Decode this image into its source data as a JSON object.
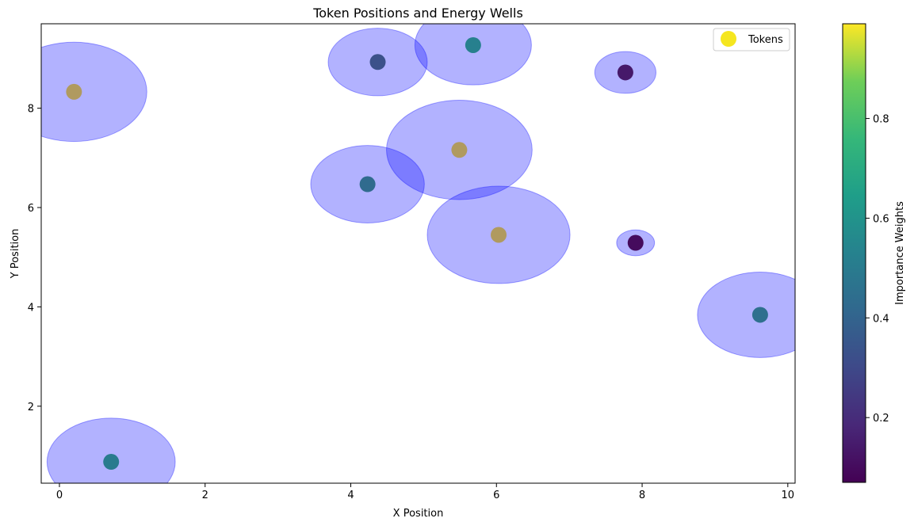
{
  "chart_data": {
    "type": "scatter",
    "title": "Token Positions and Energy Wells",
    "xlabel": "X Position",
    "ylabel": "Y Position",
    "xlim": [
      -0.25,
      10.1
    ],
    "ylim": [
      0.45,
      9.7
    ],
    "xticks": [
      0,
      2,
      4,
      6,
      8,
      10
    ],
    "yticks": [
      2,
      4,
      6,
      8
    ],
    "grid": false,
    "legend": {
      "position": "upper-right",
      "entries": [
        "Tokens"
      ]
    },
    "colorbar": {
      "label": "Importance Weights",
      "colormap": "viridis",
      "range": [
        0.07,
        0.99
      ],
      "ticks": [
        0.2,
        0.4,
        0.6,
        0.8
      ]
    },
    "series": [
      {
        "name": "Tokens",
        "points": [
          {
            "x": 0.2,
            "y": 8.33,
            "weight": 0.85,
            "well_rx": 1.0,
            "well_ry": 1.0
          },
          {
            "x": 4.37,
            "y": 8.93,
            "weight": 0.33,
            "well_rx": 0.68,
            "well_ry": 0.68
          },
          {
            "x": 5.68,
            "y": 9.27,
            "weight": 0.52,
            "well_rx": 0.8,
            "well_ry": 0.8
          },
          {
            "x": 7.77,
            "y": 8.72,
            "weight": 0.14,
            "well_rx": 0.42,
            "well_ry": 0.42
          },
          {
            "x": 5.49,
            "y": 7.16,
            "weight": 0.85,
            "well_rx": 1.0,
            "well_ry": 1.0
          },
          {
            "x": 4.23,
            "y": 6.47,
            "weight": 0.43,
            "well_rx": 0.78,
            "well_ry": 0.78
          },
          {
            "x": 6.03,
            "y": 5.45,
            "weight": 0.85,
            "well_rx": 0.98,
            "well_ry": 0.98
          },
          {
            "x": 7.91,
            "y": 5.29,
            "weight": 0.1,
            "well_rx": 0.26,
            "well_ry": 0.26
          },
          {
            "x": 9.62,
            "y": 3.84,
            "weight": 0.45,
            "well_rx": 0.86,
            "well_ry": 0.86
          },
          {
            "x": 0.71,
            "y": 0.88,
            "weight": 0.5,
            "well_rx": 0.88,
            "well_ry": 0.88
          }
        ]
      }
    ],
    "colors": {
      "well_fill": "#0000ff",
      "well_fill_opacity": 0.3,
      "tan_token": "#b09a5f",
      "legend_marker": "#f5e61f"
    }
  }
}
